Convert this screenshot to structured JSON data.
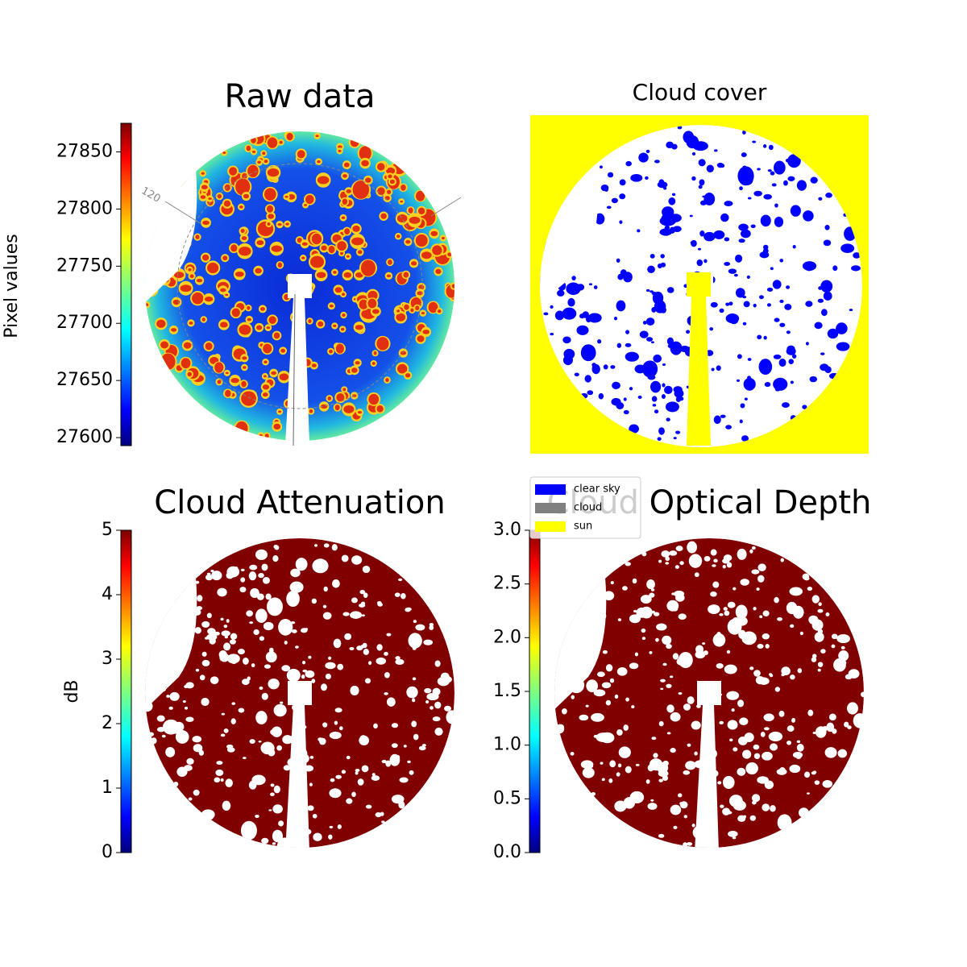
{
  "chart_data": [
    {
      "type": "image",
      "title": "Raw data",
      "colorbar_label": "Pixel values",
      "colormap": "jet",
      "clim": [
        27593,
        27875
      ],
      "cticks": [
        27600,
        27650,
        27700,
        27750,
        27800,
        27850
      ],
      "annotation": "120"
    },
    {
      "type": "classmap",
      "title": "Cloud cover",
      "series": [
        {
          "name": "clear sky",
          "color": "#0000ff"
        },
        {
          "name": "cloud",
          "color": "#808080"
        },
        {
          "name": "sun",
          "color": "#ffff00"
        }
      ]
    },
    {
      "type": "image",
      "title": "Cloud Attenuation",
      "colorbar_label": "dB",
      "colormap": "jet",
      "clim": [
        0,
        5
      ],
      "cticks": [
        0,
        1,
        2,
        3,
        4,
        5
      ]
    },
    {
      "type": "image",
      "title": "Cloud Optical Depth",
      "colormap": "jet",
      "clim": [
        0,
        3
      ],
      "cticks": [
        {
          "value": 0,
          "label": "0.0"
        },
        0.5,
        {
          "value": 1,
          "label": "1.0"
        },
        1.5,
        {
          "value": 2,
          "label": "2.0"
        },
        2.5,
        {
          "value": 3,
          "label": "3.0"
        }
      ]
    }
  ]
}
